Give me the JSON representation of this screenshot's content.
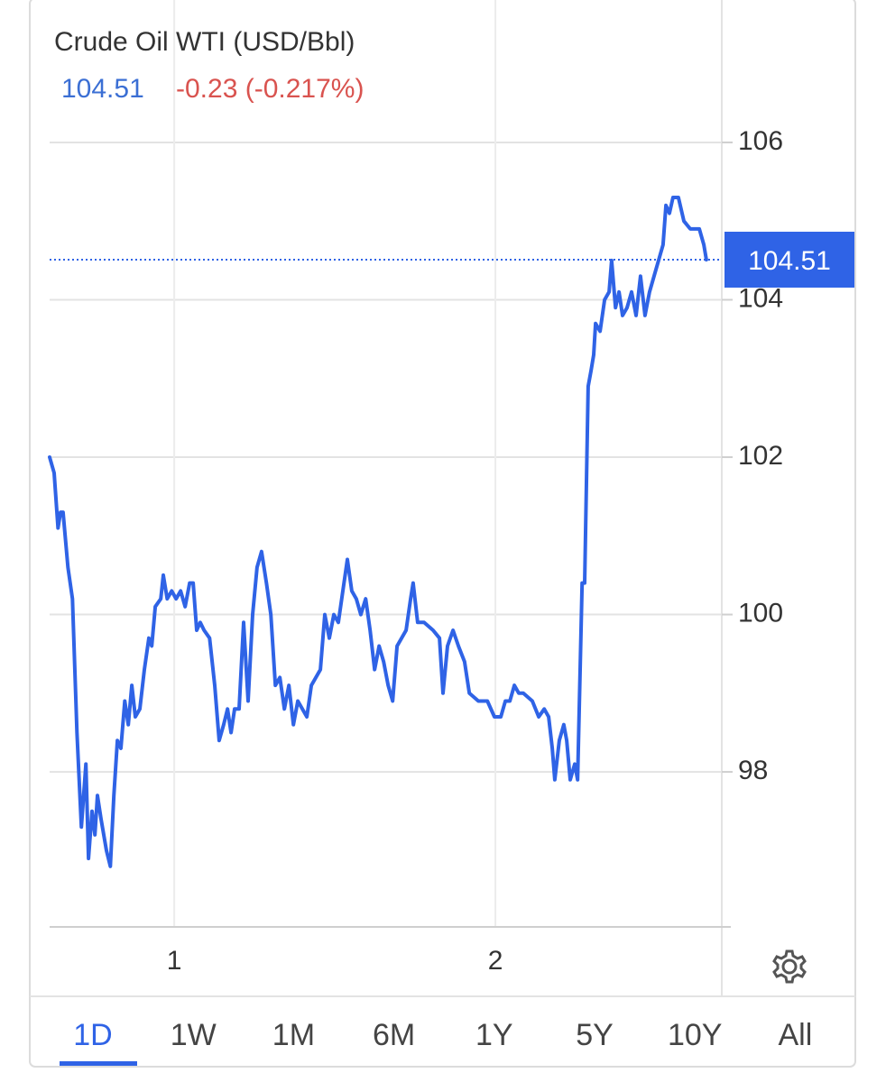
{
  "chart_data": {
    "type": "line",
    "title": "Crude Oil WTI (USD/Bbl)",
    "price": 104.51,
    "change": "-0.23 (-0.217%)",
    "color": "#2f63e6",
    "x": [
      0.612,
      0.626,
      0.638,
      0.646,
      0.654,
      0.669,
      0.683,
      0.697,
      0.711,
      0.725,
      0.733,
      0.744,
      0.753,
      0.761,
      0.772,
      0.789,
      0.801,
      0.812,
      0.823,
      0.834,
      0.846,
      0.857,
      0.868,
      0.879,
      0.893,
      0.907,
      0.921,
      0.93,
      0.941,
      0.958,
      0.966,
      0.978,
      0.992,
      1.006,
      1.02,
      1.034,
      1.048,
      1.059,
      1.07,
      1.081,
      1.093,
      1.11,
      1.126,
      1.14,
      1.154,
      1.166,
      1.177,
      1.188,
      1.202,
      1.216,
      1.23,
      1.244,
      1.258,
      1.272,
      1.287,
      1.301,
      1.315,
      1.329,
      1.343,
      1.357,
      1.371,
      1.385,
      1.399,
      1.413,
      1.427,
      1.441,
      1.455,
      1.469,
      1.483,
      1.497,
      1.511,
      1.525,
      1.539,
      1.553,
      1.567,
      1.581,
      1.596,
      1.61,
      1.624,
      1.638,
      1.652,
      1.666,
      1.68,
      1.694,
      1.708,
      1.722,
      1.736,
      1.744,
      1.758,
      1.778,
      1.806,
      1.826,
      1.837,
      1.851,
      1.868,
      1.885,
      1.904,
      1.919,
      1.947,
      1.975,
      1.997,
      2.017,
      2.031,
      2.045,
      2.059,
      2.073,
      2.087,
      2.115,
      2.135,
      2.152,
      2.166,
      2.177,
      2.185,
      2.199,
      2.213,
      2.222,
      2.233,
      2.247,
      2.256,
      2.27,
      2.278,
      2.289,
      2.298,
      2.306,
      2.312,
      2.326,
      2.34,
      2.354,
      2.362,
      2.374,
      2.385,
      2.396,
      2.41,
      2.424,
      2.438,
      2.452,
      2.466,
      2.48,
      2.494,
      2.508,
      2.522,
      2.531,
      2.542,
      2.553,
      2.57,
      2.587,
      2.607,
      2.621,
      2.635,
      2.649,
      2.657
    ],
    "values": [
      102.0,
      101.8,
      101.1,
      101.3,
      101.3,
      100.6,
      100.2,
      98.5,
      97.3,
      98.1,
      96.9,
      97.5,
      97.2,
      97.7,
      97.4,
      97.0,
      96.8,
      97.7,
      98.4,
      98.3,
      98.9,
      98.6,
      99.1,
      98.7,
      98.8,
      99.3,
      99.7,
      99.6,
      100.1,
      100.2,
      100.5,
      100.2,
      100.3,
      100.2,
      100.3,
      100.1,
      100.4,
      100.4,
      99.8,
      99.9,
      99.8,
      99.7,
      99.1,
      98.4,
      98.6,
      98.8,
      98.5,
      98.8,
      98.8,
      99.9,
      98.9,
      100.0,
      100.6,
      100.8,
      100.4,
      100.0,
      99.1,
      99.2,
      98.8,
      99.1,
      98.6,
      98.9,
      98.8,
      98.7,
      99.1,
      99.2,
      99.3,
      100.0,
      99.7,
      100.0,
      99.9,
      100.3,
      100.7,
      100.3,
      100.2,
      100.0,
      100.2,
      99.8,
      99.3,
      99.6,
      99.4,
      99.1,
      98.9,
      99.6,
      99.7,
      99.8,
      100.2,
      100.4,
      99.9,
      99.9,
      99.8,
      99.7,
      99.0,
      99.6,
      99.8,
      99.6,
      99.4,
      99.0,
      98.9,
      98.9,
      98.7,
      98.7,
      98.9,
      98.9,
      99.1,
      99.0,
      99.0,
      98.9,
      98.7,
      98.8,
      98.7,
      98.3,
      97.9,
      98.4,
      98.6,
      98.4,
      97.9,
      98.1,
      97.9,
      100.4,
      100.4,
      102.9,
      103.1,
      103.3,
      103.7,
      103.6,
      104.0,
      104.1,
      104.5,
      103.9,
      104.1,
      103.8,
      103.9,
      104.1,
      103.8,
      104.3,
      103.8,
      104.1,
      104.3,
      104.5,
      104.7,
      105.2,
      105.1,
      105.3,
      105.3,
      105.0,
      104.9,
      104.9,
      104.9,
      104.7,
      104.51
    ],
    "xlim": [
      0.612,
      2.705
    ],
    "xticks": [
      1,
      2
    ],
    "ylim": [
      96.03,
      107.81
    ],
    "yticks": [
      98,
      100,
      102,
      104,
      106
    ],
    "grid": true,
    "ranges": [
      "1D",
      "1W",
      "1M",
      "6M",
      "1Y",
      "5Y",
      "10Y",
      "All"
    ],
    "selected_range": "1D"
  }
}
